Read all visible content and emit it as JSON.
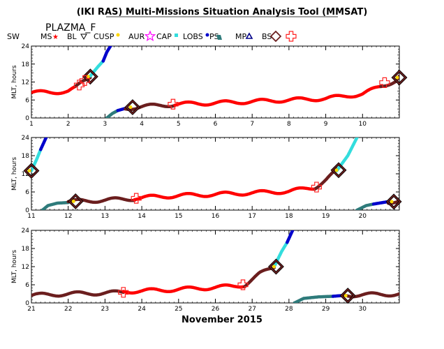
{
  "title": "(IKI RAS) Multi-Missions Situation Analysis Tool (MMSAT)",
  "spacecraft": "PLAZMA_F",
  "legend": [
    {
      "label": "SW",
      "color": "#ff0000",
      "icon": "none"
    },
    {
      "label": "MS",
      "color": "#ff0000",
      "icon": "star-icon"
    },
    {
      "label": "BL",
      "color": "#000000",
      "icon": "triangle-down-icon"
    },
    {
      "label": "CUSP",
      "color": "#ffd700",
      "icon": "dot-icon"
    },
    {
      "label": "AUR",
      "color": "#ff00ff",
      "icon": "star-outline-icon"
    },
    {
      "label": "CAP",
      "color": "#33dddd",
      "icon": "square-icon"
    },
    {
      "label": "LOBS",
      "color": "#0000cc",
      "icon": "dot-icon"
    },
    {
      "label": "PS",
      "color": "#2e7b7b",
      "icon": "quad-icon"
    },
    {
      "label": "MP",
      "color": "#000088",
      "icon": "triangle-icon"
    },
    {
      "label": "BS",
      "color": "#6b1e1e",
      "icon": "diamond-icon"
    },
    {
      "label": "",
      "color": "#ff2222",
      "icon": "cross-outline-icon"
    }
  ],
  "colors": {
    "sw": "#ff0000",
    "ms": "#6b1e1e",
    "cap": "#33dddd",
    "lobs": "#0000cc",
    "ps": "#2e7b7b",
    "bs": "#6b1e1e"
  },
  "chart_data": {
    "type": "line",
    "title": "(IKI RAS) Multi-Missions Situation Analysis Tool (MMSAT)",
    "xlabel": "November 2015",
    "ylabel": "MLT, hours",
    "ylim": [
      0,
      24
    ],
    "yticks": [
      0,
      6,
      12,
      18,
      24
    ],
    "panels": [
      {
        "xlim": [
          1,
          11
        ],
        "xticks": [
          "1",
          "2",
          "3",
          "4",
          "5",
          "6",
          "7",
          "8",
          "9",
          "10"
        ],
        "series": [
          {
            "region": "SW",
            "x": [
              1.0,
              1.5,
              2.0,
              2.2
            ],
            "y": [
              8.5,
              8.5,
              9.0,
              10.0
            ]
          },
          {
            "region": "MS",
            "x": [
              2.2,
              2.4,
              2.6
            ],
            "y": [
              10.0,
              12.0,
              13.8
            ]
          },
          {
            "region": "CAP",
            "x": [
              2.6,
              2.8,
              2.95
            ],
            "y": [
              14.0,
              17.0,
              19.0
            ]
          },
          {
            "region": "LOBS",
            "x": [
              2.95,
              3.05,
              3.15
            ],
            "y": [
              19.0,
              22.0,
              24.0
            ]
          },
          {
            "region": "PS",
            "x": [
              3.05,
              3.2,
              3.35
            ],
            "y": [
              0.0,
              1.5,
              2.5
            ]
          },
          {
            "region": "LOBS",
            "x": [
              3.35,
              3.55
            ],
            "y": [
              2.5,
              3.2
            ]
          },
          {
            "region": "MS",
            "x": [
              3.55,
              4.0,
              4.5,
              4.9
            ],
            "y": [
              3.2,
              3.8,
              4.2,
              4.5
            ]
          },
          {
            "region": "SW",
            "x": [
              4.9,
              6.0,
              7.0,
              8.0,
              9.0,
              10.0,
              10.5
            ],
            "y": [
              4.6,
              5.0,
              5.5,
              6.0,
              6.5,
              8.0,
              10.5
            ]
          },
          {
            "region": "MS",
            "x": [
              10.5,
              10.9,
              11.0
            ],
            "y": [
              10.5,
              12.5,
              14.0
            ]
          }
        ],
        "crossings": [
          {
            "type": "BS",
            "x": 2.6,
            "y": 13.8
          },
          {
            "type": "BS",
            "x": 3.75,
            "y": 3.6
          },
          {
            "type": "SW",
            "x": 2.3,
            "y": 11.0
          },
          {
            "type": "SW",
            "x": 2.45,
            "y": 12.5
          },
          {
            "type": "SW",
            "x": 4.85,
            "y": 4.6
          },
          {
            "type": "SW",
            "x": 10.6,
            "y": 11.8
          },
          {
            "type": "BS",
            "x": 11.0,
            "y": 13.5
          }
        ]
      },
      {
        "xlim": [
          11,
          21
        ],
        "xticks": [
          "11",
          "12",
          "13",
          "14",
          "15",
          "16",
          "17",
          "18",
          "19",
          "20"
        ],
        "series": [
          {
            "region": "CAP",
            "x": [
              11.0,
              11.15,
              11.25
            ],
            "y": [
              13.0,
              17.0,
              20.0
            ]
          },
          {
            "region": "LOBS",
            "x": [
              11.25,
              11.4
            ],
            "y": [
              20.0,
              24.0
            ]
          },
          {
            "region": "PS",
            "x": [
              11.3,
              11.45,
              11.7,
              12.0
            ],
            "y": [
              0.0,
              1.5,
              2.3,
              2.5
            ]
          },
          {
            "region": "MS",
            "x": [
              12.0,
              13.0,
              13.8
            ],
            "y": [
              2.8,
              3.3,
              3.8
            ]
          },
          {
            "region": "SW",
            "x": [
              13.8,
              15.0,
              16.0,
              17.0,
              18.0,
              18.7
            ],
            "y": [
              4.0,
              4.8,
              5.2,
              5.7,
              6.2,
              7.5
            ]
          },
          {
            "region": "MS",
            "x": [
              18.7,
              19.0,
              19.3
            ],
            "y": [
              7.5,
              10.0,
              13.0
            ]
          },
          {
            "region": "CAP",
            "x": [
              19.3,
              19.6,
              19.85
            ],
            "y": [
              13.0,
              18.0,
              24.0
            ]
          },
          {
            "region": "PS",
            "x": [
              19.85,
              20.1,
              20.3
            ],
            "y": [
              0.0,
              1.5,
              2.0
            ]
          },
          {
            "region": "LOBS",
            "x": [
              20.3,
              20.7
            ],
            "y": [
              2.0,
              2.8
            ]
          },
          {
            "region": "MS",
            "x": [
              20.7,
              21.0
            ],
            "y": [
              2.8,
              3.0
            ]
          }
        ],
        "crossings": [
          {
            "type": "BS",
            "x": 11.0,
            "y": 13.0
          },
          {
            "type": "BS",
            "x": 12.2,
            "y": 2.9
          },
          {
            "type": "SW",
            "x": 13.85,
            "y": 3.9
          },
          {
            "type": "SW",
            "x": 18.75,
            "y": 7.6
          },
          {
            "type": "BS",
            "x": 19.35,
            "y": 13.2
          },
          {
            "type": "BS",
            "x": 20.85,
            "y": 2.8
          }
        ]
      },
      {
        "xlim": [
          21,
          31
        ],
        "xticks": [
          "21",
          "22",
          "23",
          "24",
          "25",
          "26",
          "27",
          "28",
          "29",
          "30"
        ],
        "series": [
          {
            "region": "MS",
            "x": [
              21.0,
              22.0,
              23.0,
              23.5
            ],
            "y": [
              2.5,
              3.0,
              3.3,
              3.5
            ]
          },
          {
            "region": "SW",
            "x": [
              23.5,
              24.5,
              25.5,
              26.5,
              26.8
            ],
            "y": [
              3.8,
              4.2,
              4.8,
              5.5,
              6.0
            ]
          },
          {
            "region": "MS",
            "x": [
              26.8,
              27.2,
              27.6
            ],
            "y": [
              6.0,
              9.5,
              12.0
            ]
          },
          {
            "region": "CAP",
            "x": [
              27.6,
              27.8,
              27.95
            ],
            "y": [
              12.0,
              17.0,
              20.0
            ]
          },
          {
            "region": "LOBS",
            "x": [
              27.95,
              28.1
            ],
            "y": [
              20.0,
              24.0
            ]
          },
          {
            "region": "PS",
            "x": [
              28.15,
              28.4,
              28.8,
              29.2
            ],
            "y": [
              0.0,
              1.5,
              2.0,
              2.2
            ]
          },
          {
            "region": "LOBS",
            "x": [
              29.2,
              29.5
            ],
            "y": [
              2.2,
              2.5
            ]
          },
          {
            "region": "MS",
            "x": [
              29.5,
              30.5,
              31.0
            ],
            "y": [
              2.6,
              2.8,
              3.0
            ]
          }
        ],
        "crossings": [
          {
            "type": "SW",
            "x": 23.5,
            "y": 3.5
          },
          {
            "type": "SW",
            "x": 26.75,
            "y": 6.0
          },
          {
            "type": "BS",
            "x": 27.65,
            "y": 12.0
          },
          {
            "type": "BS",
            "x": 29.6,
            "y": 2.4
          }
        ]
      }
    ]
  }
}
